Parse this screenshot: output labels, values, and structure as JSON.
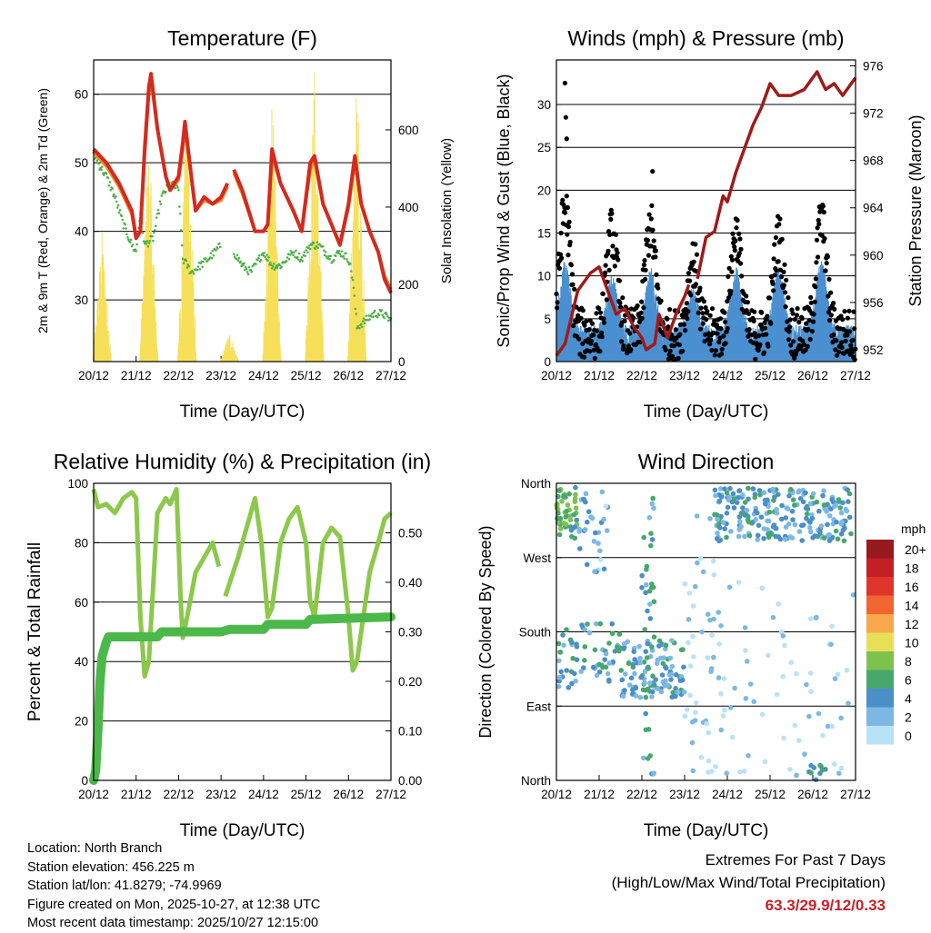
{
  "footer": {
    "location": "Location: North Branch",
    "elevation": "Station elevation: 456.225 m",
    "latlon": "Station lat/lon: 41.8279; -74.9969",
    "created": "Figure created on Mon, 2025-10-27, at 12:38 UTC",
    "recent": "Most recent data timestamp: 2025/10/27 12:15:00"
  },
  "extremes": {
    "title": "Extremes For Past 7 Days",
    "subtitle": "(High/Low/Max Wind/Total Precipitation)",
    "values": "63.3/29.9/12/0.33",
    "color": "#c8202a"
  },
  "chart_data": [
    {
      "type": "line",
      "title": "Temperature (F)",
      "xlabel": "Time (Day/UTC)",
      "ylabel": "2m & 9m T (Red, Orange) & 2m Td (Green)",
      "y2label": "Solar Insolation (Yellow)",
      "xticks": [
        "20/12",
        "21/12",
        "22/12",
        "23/12",
        "24/12",
        "25/12",
        "26/12",
        "27/12"
      ],
      "xlim": [
        0,
        7
      ],
      "ylim": [
        21,
        65
      ],
      "yticks": [
        30,
        40,
        50,
        60
      ],
      "y2lim": [
        0,
        781
      ],
      "y2ticks": [
        0,
        200,
        400,
        600
      ],
      "series": [
        {
          "name": "2m T",
          "color": "#d42a20",
          "axis": "left",
          "x": [
            0,
            0.3,
            0.6,
            0.9,
            1.0,
            1.1,
            1.2,
            1.3,
            1.35,
            1.5,
            1.7,
            1.8,
            2.0,
            2.1,
            2.15,
            2.3,
            2.4,
            2.6,
            2.8,
            3.0,
            3.15,
            null,
            3.3,
            3.5,
            3.8,
            4.0,
            4.1,
            4.2,
            4.4,
            4.7,
            4.9,
            5.1,
            5.2,
            5.4,
            5.6,
            5.8,
            6.0,
            6.15,
            6.3,
            6.5,
            6.7,
            6.85,
            7.0
          ],
          "y": [
            52,
            50,
            47,
            43,
            39,
            40,
            52,
            61,
            63,
            55,
            48,
            46,
            48,
            53,
            56,
            48,
            43,
            45,
            44,
            45,
            47,
            null,
            49,
            46,
            40,
            40,
            41,
            52,
            47,
            43,
            40,
            50,
            51,
            44,
            41,
            38,
            44,
            51,
            44,
            40,
            37,
            33,
            31
          ]
        },
        {
          "name": "9m T",
          "color": "#f08a24",
          "axis": "left",
          "x": [
            0,
            0.3,
            0.6,
            0.9,
            1.0,
            1.1,
            1.2,
            1.3,
            1.35,
            1.5,
            1.7,
            1.8,
            2.0,
            2.1,
            2.15,
            2.3,
            2.4,
            2.6,
            2.8,
            3.0,
            3.15,
            null,
            3.3,
            3.5,
            3.8,
            4.0,
            4.1,
            4.2,
            4.4,
            4.7,
            4.9,
            5.1,
            5.2,
            5.4,
            5.6,
            5.8,
            6.0,
            6.15,
            6.3,
            6.5,
            6.7,
            6.85,
            7.0
          ],
          "y": [
            51.5,
            49.5,
            46.5,
            42.5,
            39,
            40,
            51,
            60,
            62,
            55,
            48,
            46,
            47.5,
            52,
            55,
            48,
            43,
            44.5,
            44,
            44.5,
            46.5,
            null,
            48.5,
            45.5,
            40,
            40,
            41,
            51,
            47,
            43,
            40,
            49,
            50.5,
            44,
            41,
            38,
            43.5,
            50,
            44,
            40,
            37,
            33.5,
            31.5
          ]
        },
        {
          "name": "2m Td",
          "color": "#4cb04a",
          "axis": "left",
          "x": [
            0,
            0.3,
            0.5,
            0.7,
            0.9,
            1.0,
            1.1,
            1.2,
            1.4,
            1.6,
            1.8,
            2.0,
            2.1,
            2.3,
            2.5,
            2.7,
            3.0,
            null,
            3.3,
            3.5,
            3.7,
            4.0,
            4.2,
            4.4,
            4.7,
            4.9,
            5.1,
            5.3,
            5.6,
            5.8,
            6.0,
            6.1,
            6.2,
            6.4,
            6.6,
            6.8,
            7.0
          ],
          "y": [
            51,
            48,
            45,
            41,
            38,
            37,
            43,
            38,
            39,
            45,
            47,
            46,
            36,
            34,
            35,
            36,
            38,
            null,
            37,
            35,
            34,
            37,
            35,
            35,
            37,
            36,
            38,
            38,
            36,
            37,
            36,
            33,
            26,
            27,
            28,
            28,
            27
          ]
        },
        {
          "name": "Solar",
          "color": "#f6e05a",
          "axis": "right",
          "day_peaks": [
            {
              "day": 0.2,
              "peak": 350
            },
            {
              "day": 1.3,
              "peak": 600
            },
            {
              "day": 2.2,
              "peak": 730
            },
            {
              "day": 3.2,
              "peak": 80
            },
            {
              "day": 4.2,
              "peak": 720
            },
            {
              "day": 5.2,
              "peak": 780
            },
            {
              "day": 6.2,
              "peak": 760
            }
          ]
        }
      ]
    },
    {
      "type": "scatter",
      "title": "Winds (mph) & Pressure (mb)",
      "xlabel": "Time (Day/UTC)",
      "ylabel": "Sonic/Prop Wind & Gust (Blue, Black)",
      "y2label": "Station Pressure (Maroon)",
      "xticks": [
        "20/12",
        "21/12",
        "22/12",
        "23/12",
        "24/12",
        "25/12",
        "26/12",
        "27/12"
      ],
      "xlim": [
        0,
        7
      ],
      "ylim": [
        0,
        35.2
      ],
      "yticks": [
        0,
        5,
        10,
        15,
        20,
        25,
        30
      ],
      "y2lim": [
        951,
        976.5
      ],
      "y2ticks": [
        952,
        956,
        960,
        964,
        968,
        972,
        976
      ],
      "series": [
        {
          "name": "Wind",
          "color": "#4a90d0",
          "daily_peak_day": [
            0.2,
            1.3,
            2.2,
            3.2,
            4.2,
            5.2,
            6.2
          ],
          "daily_peak_mph": [
            10,
            8,
            9,
            6,
            9,
            9,
            10
          ]
        },
        {
          "name": "Gust",
          "color": "#000000",
          "daily_peak_day": [
            0.2,
            1.3,
            2.2,
            3.2,
            4.2,
            5.2,
            6.2
          ],
          "daily_peak_mph": [
            21,
            17,
            18,
            12,
            17,
            16,
            19
          ],
          "outliers": [
            [
              0.2,
              32.5
            ],
            [
              0.22,
              28.5
            ],
            [
              0.24,
              26
            ],
            [
              2.25,
              22.2
            ]
          ]
        },
        {
          "name": "Pressure",
          "color": "#a01a1a",
          "x": [
            0,
            0.2,
            0.5,
            0.8,
            1.0,
            1.1,
            1.2,
            1.4,
            1.6,
            1.8,
            2.0,
            2.1,
            2.3,
            2.4,
            2.6,
            2.8,
            3.0,
            3.1,
            null,
            3.3,
            3.5,
            3.7,
            3.9,
            4.0,
            4.2,
            4.4,
            4.6,
            4.8,
            5.0,
            5.1,
            5.2,
            5.5,
            5.8,
            6.0,
            6.1,
            6.3,
            6.5,
            6.7,
            6.8,
            7.0
          ],
          "y": [
            951.5,
            952.5,
            957,
            958.5,
            959,
            958,
            957,
            955,
            955.5,
            954,
            953,
            952,
            952.5,
            955,
            953,
            955,
            956.5,
            957.5,
            null,
            958,
            961.5,
            962,
            965,
            964.5,
            967,
            969,
            971,
            972.5,
            974.5,
            974,
            973.5,
            973.5,
            974,
            975,
            975.5,
            974,
            974.5,
            973.5,
            974,
            975
          ]
        }
      ]
    },
    {
      "type": "line",
      "title": "Relative Humidity (%) & Precipitation (in)",
      "xlabel": "Time (Day/UTC)",
      "ylabel": "Percent & Total Rainfall",
      "xticks": [
        "20/12",
        "21/12",
        "22/12",
        "23/12",
        "24/12",
        "25/12",
        "26/12",
        "27/12"
      ],
      "xlim": [
        0,
        7
      ],
      "ylim": [
        0,
        100
      ],
      "yticks": [
        0,
        20,
        40,
        60,
        80,
        100
      ],
      "y2lim": [
        0,
        0.6
      ],
      "y2ticks": [
        "0.00",
        "0.10",
        "0.20",
        "0.30",
        "0.40",
        "0.50"
      ],
      "series": [
        {
          "name": "RH",
          "color": "#8cc84b",
          "axis": "left",
          "x": [
            0,
            0.1,
            0.3,
            0.5,
            0.7,
            0.9,
            1.0,
            1.1,
            1.2,
            1.3,
            1.5,
            1.7,
            1.8,
            1.95,
            2.05,
            2.1,
            2.2,
            2.4,
            2.6,
            2.8,
            2.95,
            null,
            3.1,
            3.4,
            3.6,
            3.8,
            3.95,
            4.1,
            4.2,
            4.4,
            4.6,
            4.8,
            5.0,
            5.1,
            5.2,
            5.4,
            5.6,
            5.8,
            6.0,
            6.1,
            6.2,
            6.5,
            6.7,
            6.85,
            7.0
          ],
          "y": [
            98,
            92,
            93,
            90,
            95,
            97,
            95,
            55,
            35,
            40,
            90,
            95,
            93,
            98,
            60,
            48,
            55,
            70,
            75,
            80,
            72,
            null,
            62,
            75,
            85,
            95,
            80,
            55,
            58,
            80,
            88,
            92,
            80,
            60,
            55,
            80,
            85,
            82,
            55,
            37,
            40,
            70,
            80,
            88,
            90
          ]
        },
        {
          "name": "Precip",
          "color": "#4cb84a",
          "axis": "right",
          "x": [
            0,
            0.05,
            0.1,
            0.15,
            0.2,
            0.3,
            0.35,
            1.5,
            1.6,
            3.0,
            3.2,
            4.0,
            4.1,
            5.0,
            5.1,
            7.0
          ],
          "y": [
            0,
            0.02,
            0.1,
            0.2,
            0.25,
            0.28,
            0.29,
            0.29,
            0.3,
            0.3,
            0.305,
            0.305,
            0.315,
            0.315,
            0.325,
            0.33
          ]
        }
      ]
    },
    {
      "type": "scatter",
      "title": "Wind Direction",
      "xlabel": "Time (Day/UTC)",
      "ylabel": "Direction (Colored By Speed)",
      "xticks": [
        "20/12",
        "21/12",
        "22/12",
        "23/12",
        "24/12",
        "25/12",
        "26/12",
        "27/12"
      ],
      "xlim": [
        0,
        7
      ],
      "ylim": [
        0,
        360
      ],
      "yticks": [
        "North",
        "East",
        "South",
        "West",
        "North"
      ],
      "legend": {
        "title": "mph",
        "labels": [
          "20+",
          "18",
          "16",
          "14",
          "12",
          "10",
          "8",
          "6",
          "4",
          "2",
          "0"
        ],
        "colors": [
          "#971a1e",
          "#c21f26",
          "#e0352b",
          "#f06530",
          "#f7a84a",
          "#e8df58",
          "#7dc24d",
          "#47a86d",
          "#4a8fc8",
          "#7db8e4",
          "#b8e2f7"
        ],
        "placement": "right"
      },
      "clusters": [
        {
          "d0": 0,
          "d1": 0.5,
          "dir0": 290,
          "dir1": 355,
          "spd": 7,
          "n": 50
        },
        {
          "d0": 0,
          "d1": 0.5,
          "dir0": 110,
          "dir1": 190,
          "spd": 4,
          "n": 25
        },
        {
          "d0": 0.5,
          "d1": 1.5,
          "dir0": 120,
          "dir1": 190,
          "spd": 5,
          "n": 40
        },
        {
          "d0": 0.5,
          "d1": 1.2,
          "dir0": 250,
          "dir1": 350,
          "spd": 3,
          "n": 30
        },
        {
          "d0": 1.5,
          "d1": 3.0,
          "dir0": 100,
          "dir1": 170,
          "spd": 4,
          "n": 110
        },
        {
          "d0": 2.0,
          "d1": 2.3,
          "dir0": 0,
          "dir1": 360,
          "spd": 5,
          "n": 40
        },
        {
          "d0": 3.0,
          "d1": 3.8,
          "dir0": 0,
          "dir1": 360,
          "spd": 1,
          "n": 40
        },
        {
          "d0": 3.7,
          "d1": 6.9,
          "dir0": 290,
          "dir1": 355,
          "spd": 4,
          "n": 230
        },
        {
          "d0": 3.5,
          "d1": 7.0,
          "dir0": 0,
          "dir1": 250,
          "spd": 1,
          "n": 70
        },
        {
          "d0": 5.9,
          "d1": 6.3,
          "dir0": 0,
          "dir1": 20,
          "spd": 5,
          "n": 10
        }
      ]
    }
  ]
}
